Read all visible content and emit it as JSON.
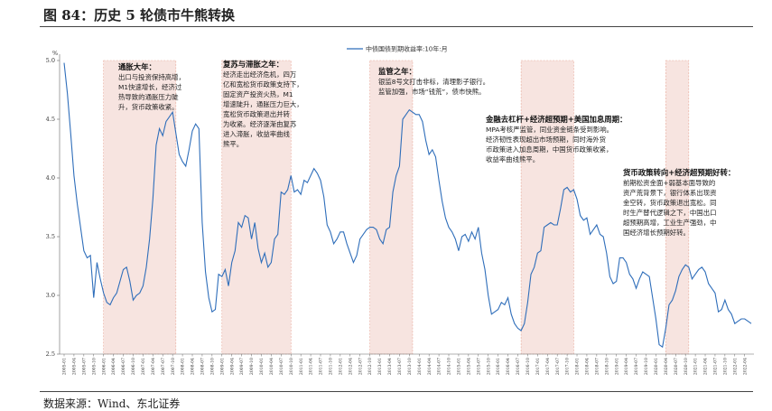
{
  "figure": {
    "title": "图 84：历史 5 轮债市牛熊转换",
    "source": "数据来源：Wind、东北证券"
  },
  "colors": {
    "line": "#2f6eba",
    "shade": "#f7e4e0",
    "shade_border": "#e8a99a"
  },
  "chart_data": {
    "type": "line",
    "title": "",
    "ylabel": "%",
    "ylim": [
      2.5,
      5.0
    ],
    "yticks": [
      "5.0",
      "4.5",
      "4.0",
      "3.5",
      "3.0",
      "2.5"
    ],
    "series": [
      {
        "name": "中债国债到期收益率:10年:月",
        "x": [
          "2005-01",
          "2005-02",
          "2005-03",
          "2005-04",
          "2005-05",
          "2005-06",
          "2005-07",
          "2005-08",
          "2005-09",
          "2005-10",
          "2005-11",
          "2005-12",
          "2006-01",
          "2006-02",
          "2006-03",
          "2006-04",
          "2006-05",
          "2006-06",
          "2006-07",
          "2006-08",
          "2006-09",
          "2006-10",
          "2006-11",
          "2006-12",
          "2007-01",
          "2007-02",
          "2007-03",
          "2007-04",
          "2007-05",
          "2007-06",
          "2007-07",
          "2007-08",
          "2007-09",
          "2007-10",
          "2007-11",
          "2007-12",
          "2008-01",
          "2008-02",
          "2008-03",
          "2008-04",
          "2008-05",
          "2008-06",
          "2008-07",
          "2008-08",
          "2008-09",
          "2008-10",
          "2008-11",
          "2008-12",
          "2009-01",
          "2009-02",
          "2009-03",
          "2009-04",
          "2009-05",
          "2009-06",
          "2009-07",
          "2009-08",
          "2009-09",
          "2009-10",
          "2009-11",
          "2009-12",
          "2010-01",
          "2010-02",
          "2010-03",
          "2010-04",
          "2010-05",
          "2010-06",
          "2010-07",
          "2010-08",
          "2010-09",
          "2010-10",
          "2010-11",
          "2010-12",
          "2011-01",
          "2011-02",
          "2011-03",
          "2011-04",
          "2011-05",
          "2011-06",
          "2011-07",
          "2011-08",
          "2011-09",
          "2011-10",
          "2011-11",
          "2011-12",
          "2012-01",
          "2012-02",
          "2012-03",
          "2012-04",
          "2012-05",
          "2012-06",
          "2012-07",
          "2012-08",
          "2012-09",
          "2012-10",
          "2012-11",
          "2012-12",
          "2013-01",
          "2013-02",
          "2013-03",
          "2013-04",
          "2013-05",
          "2013-06",
          "2013-07",
          "2013-08",
          "2013-09",
          "2013-10",
          "2013-11",
          "2013-12",
          "2014-01",
          "2014-02",
          "2014-03",
          "2014-04",
          "2014-05",
          "2014-06",
          "2014-07",
          "2014-08",
          "2014-09",
          "2014-10",
          "2014-11",
          "2014-12",
          "2015-01",
          "2015-02",
          "2015-03",
          "2015-04",
          "2015-05",
          "2015-06",
          "2015-07",
          "2015-08",
          "2015-09",
          "2015-10",
          "2015-11",
          "2015-12",
          "2016-01",
          "2016-02",
          "2016-03",
          "2016-04",
          "2016-05",
          "2016-06",
          "2016-07",
          "2016-08",
          "2016-09",
          "2016-10",
          "2016-11",
          "2016-12",
          "2017-01",
          "2017-02",
          "2017-03",
          "2017-04",
          "2017-05",
          "2017-06",
          "2017-07",
          "2017-08",
          "2017-09",
          "2017-10",
          "2017-11",
          "2017-12",
          "2018-01",
          "2018-02",
          "2018-03",
          "2018-04",
          "2018-05",
          "2018-06",
          "2018-07",
          "2018-08",
          "2018-09",
          "2018-10",
          "2018-11",
          "2018-12",
          "2019-01",
          "2019-02",
          "2019-03",
          "2019-04",
          "2019-05",
          "2019-06",
          "2019-07",
          "2019-08",
          "2019-09",
          "2019-10",
          "2019-11",
          "2019-12",
          "2020-01",
          "2020-02",
          "2020-03",
          "2020-04",
          "2020-05",
          "2020-06",
          "2020-07",
          "2020-08",
          "2020-09",
          "2020-10",
          "2020-11",
          "2020-12",
          "2021-01",
          "2021-02",
          "2021-03",
          "2021-04",
          "2021-05",
          "2021-06",
          "2021-07",
          "2021-08",
          "2021-09",
          "2021-10",
          "2021-11",
          "2021-12",
          "2022-01",
          "2022-02",
          "2022-03",
          "2022-04",
          "2022-05",
          "2022-06"
        ],
        "values": [
          4.98,
          4.72,
          4.38,
          4.02,
          3.78,
          3.58,
          3.38,
          3.32,
          3.34,
          2.98,
          3.28,
          3.14,
          3.02,
          2.94,
          2.92,
          2.98,
          3.02,
          3.12,
          3.22,
          3.24,
          3.12,
          2.96,
          3.0,
          3.02,
          3.08,
          3.24,
          3.48,
          3.82,
          4.28,
          4.42,
          4.36,
          4.48,
          4.52,
          4.56,
          4.38,
          4.2,
          4.14,
          4.1,
          4.24,
          4.4,
          4.46,
          4.42,
          3.62,
          3.2,
          2.98,
          2.86,
          2.88,
          3.18,
          3.16,
          3.22,
          3.08,
          3.28,
          3.38,
          3.62,
          3.58,
          3.68,
          3.66,
          3.48,
          3.62,
          3.4,
          3.28,
          3.36,
          3.24,
          3.28,
          3.48,
          3.52,
          3.88,
          3.86,
          3.9,
          4.02,
          3.88,
          3.9,
          3.86,
          3.98,
          3.96,
          4.02,
          4.08,
          4.04,
          3.98,
          3.84,
          3.6,
          3.54,
          3.44,
          3.48,
          3.54,
          3.54,
          3.44,
          3.36,
          3.28,
          3.34,
          3.48,
          3.52,
          3.56,
          3.58,
          3.58,
          3.56,
          3.48,
          3.44,
          3.56,
          3.58,
          3.88,
          4.02,
          4.1,
          4.5,
          4.54,
          4.58,
          4.56,
          4.54,
          4.54,
          4.48,
          4.32,
          4.2,
          4.24,
          4.18,
          3.98,
          3.8,
          3.66,
          3.58,
          3.54,
          3.48,
          3.38,
          3.5,
          3.52,
          3.46,
          3.54,
          3.48,
          3.58,
          3.36,
          3.22,
          3.0,
          2.84,
          2.86,
          2.88,
          2.94,
          2.92,
          2.98,
          2.84,
          2.76,
          2.72,
          2.7,
          2.76,
          2.94,
          3.18,
          3.24,
          3.36,
          3.38,
          3.58,
          3.6,
          3.62,
          3.6,
          3.6,
          3.74,
          3.9,
          3.92,
          3.88,
          3.9,
          3.82,
          3.68,
          3.64,
          3.66,
          3.52,
          3.56,
          3.6,
          3.52,
          3.5,
          3.36,
          3.16,
          3.1,
          3.12,
          3.32,
          3.32,
          3.28,
          3.18,
          3.14,
          3.06,
          3.14,
          3.2,
          3.18,
          3.16,
          2.98,
          2.8,
          2.58,
          2.56,
          2.72,
          2.92,
          2.96,
          3.04,
          3.16,
          3.22,
          3.26,
          3.24,
          3.14,
          3.18,
          3.22,
          3.24,
          3.2,
          3.1,
          3.06,
          3.02,
          2.86,
          2.88,
          2.96,
          2.88,
          2.84,
          2.76,
          2.78,
          2.8,
          2.8,
          2.78,
          2.76
        ]
      }
    ],
    "shaded_periods": [
      {
        "start": "2006-01",
        "end": "2007-11"
      },
      {
        "start": "2009-01",
        "end": "2010-10"
      },
      {
        "start": "2012-10",
        "end": "2013-11"
      },
      {
        "start": "2016-08",
        "end": "2017-12"
      },
      {
        "start": "2020-04",
        "end": "2020-11"
      }
    ],
    "xtick_labels": [
      "2005-01",
      "2005-04",
      "2005-07",
      "2005-10",
      "2006-01",
      "2006-04",
      "2006-07",
      "2006-10",
      "2007-01",
      "2007-04",
      "2007-07",
      "2007-10",
      "2008-01",
      "2008-04",
      "2008-07",
      "2008-10",
      "2009-01",
      "2009-04",
      "2009-07",
      "2009-10",
      "2010-01",
      "2010-04",
      "2010-07",
      "2010-10",
      "2011-01",
      "2011-04",
      "2011-07",
      "2011-10",
      "2012-01",
      "2012-04",
      "2012-07",
      "2012-10",
      "2013-01",
      "2013-04",
      "2013-07",
      "2013-10",
      "2014-01",
      "2014-04",
      "2014-07",
      "2014-10",
      "2015-01",
      "2015-04",
      "2015-07",
      "2015-10",
      "2016-01",
      "2016-04",
      "2016-07",
      "2016-10",
      "2017-01",
      "2017-04",
      "2017-07",
      "2017-10",
      "2018-01",
      "2018-04",
      "2018-07",
      "2018-10",
      "2019-01",
      "2019-04",
      "2019-07",
      "2019-10",
      "2020-01",
      "2020-04",
      "2020-07",
      "2020-10",
      "2021-01",
      "2021-04",
      "2021-07",
      "2021-10",
      "2022-01",
      "2022-04"
    ],
    "legend_position": "top-center",
    "annotations": [
      {
        "title": "通胀大年：",
        "lines": [
          "出口与投资保持高增，",
          "M1快速增长，经济过",
          "热导致的通胀压力陡",
          "升，货币政策收紧。"
        ]
      },
      {
        "title": "复苏与滞胀之年：",
        "lines": [
          "经济走出经济危机，四万",
          "亿和宽松货币政策支持下，",
          "固定资产投资火热，M1",
          "增速陡升，通胀压力巨大，",
          "宽松货币政策退出并转",
          "为收紧。经济逐渐由复苏",
          "进入滞胀，收益率曲线",
          "熊平。"
        ]
      },
      {
        "title": "监管之年：",
        "lines": [
          "银监8号文打击非标，清理影子银行。",
          "监管加强，市场“钱荒”，债市快熊。"
        ]
      },
      {
        "title": "金融去杠杆+经济超预期+美国加息周期：",
        "lines": [
          "MPA考核严监管，同业资金链条受到影响。",
          "经济韧性表现超出市场预期，同时海外货",
          "币政策进入加息周期，中国货币政策收紧，",
          "收益率曲线熊平。"
        ]
      },
      {
        "title": "货币政策转向+经济超预期好转：",
        "lines": [
          "前期松资金面+弱基本面导致的",
          "资产荒背景下，银行体系出现资",
          "金空转，货币政策退出宽松。同",
          "时生产替代逻辑之下，中国出口",
          "超预期高增，工业生产强劲，中",
          "国经济增长预期好转。"
        ]
      }
    ]
  }
}
